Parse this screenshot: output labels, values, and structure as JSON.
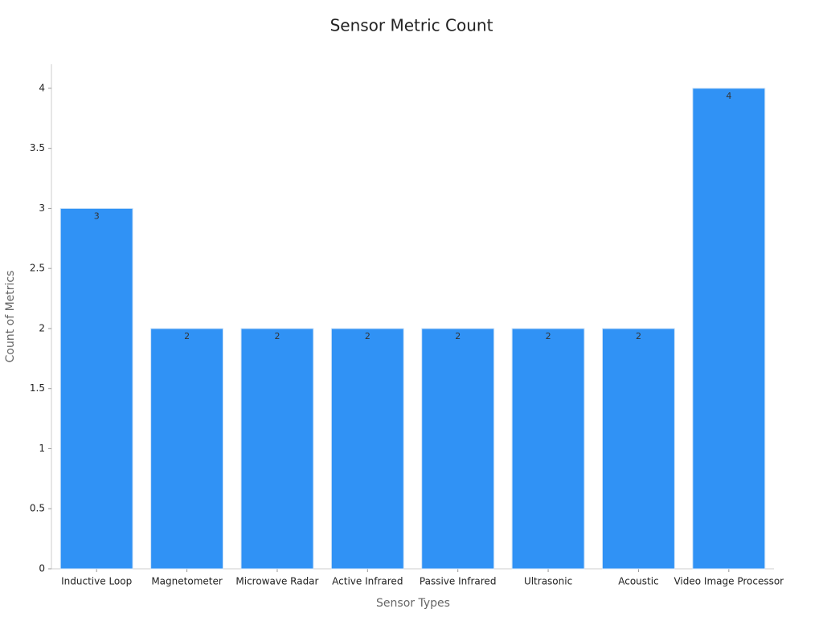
{
  "chart_data": {
    "type": "bar",
    "title": "Sensor Metric Count",
    "x_label": "Sensor Types",
    "y_label": "Count of Metrics",
    "categories": [
      "Inductive Loop",
      "Magnetometer",
      "Microwave Radar",
      "Active Infrared",
      "Passive Infrared",
      "Ultrasonic",
      "Acoustic",
      "Video Image Processor"
    ],
    "values": [
      3,
      2,
      2,
      2,
      2,
      2,
      2,
      4
    ],
    "color": "#3092f5",
    "ylim": [
      0,
      4.2
    ],
    "yticks": [
      0,
      0.5,
      1,
      1.5,
      2,
      2.5,
      3,
      3.5,
      4
    ],
    "grid": false
  }
}
